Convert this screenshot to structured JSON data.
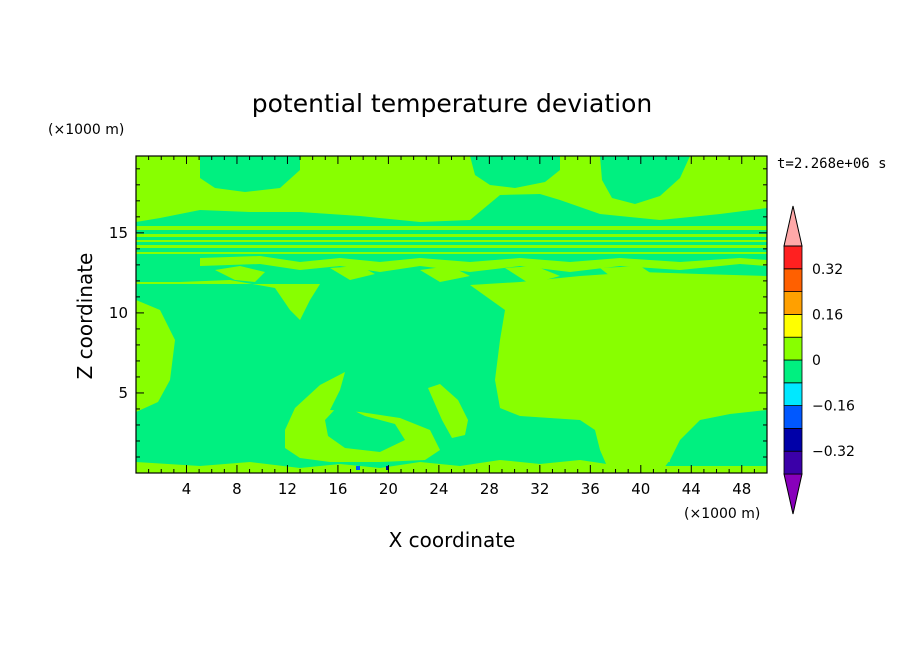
{
  "chart_data": {
    "type": "heatmap",
    "title": "potential temperature deviation",
    "xlabel": "X coordinate",
    "ylabel": "Z coordinate",
    "x_unit": "(×1000 m)",
    "y_unit": "(×1000 m)",
    "time_label": "t=2.268e+06 s",
    "xlim": [
      0,
      50
    ],
    "ylim": [
      0,
      19.8
    ],
    "x_ticks": [
      4,
      8,
      12,
      16,
      20,
      24,
      28,
      32,
      36,
      40,
      44,
      48
    ],
    "y_ticks": [
      5,
      10,
      15
    ],
    "colorbar": {
      "levels": [
        -0.48,
        -0.4,
        -0.32,
        -0.24,
        -0.16,
        -0.08,
        0,
        0.08,
        0.16,
        0.24,
        0.32,
        0.4
      ],
      "colors": [
        "#8800bb",
        "#3b00a8",
        "#0000a8",
        "#0058ff",
        "#00e8ff",
        "#00f080",
        "#88ff00",
        "#ffff00",
        "#ffa000",
        "#ff6000",
        "#ff2020",
        "#ffa8a8"
      ],
      "tick_labels": [
        "0.32",
        "0.16",
        "0",
        "−0.16",
        "−0.32"
      ],
      "tick_values": [
        0.32,
        0.16,
        0,
        -0.16,
        -0.32
      ]
    },
    "palette": {
      "teal": "#00f080",
      "lime": "#88ff00",
      "blue": "#0058ff",
      "darkblue": "#0000a8"
    }
  }
}
